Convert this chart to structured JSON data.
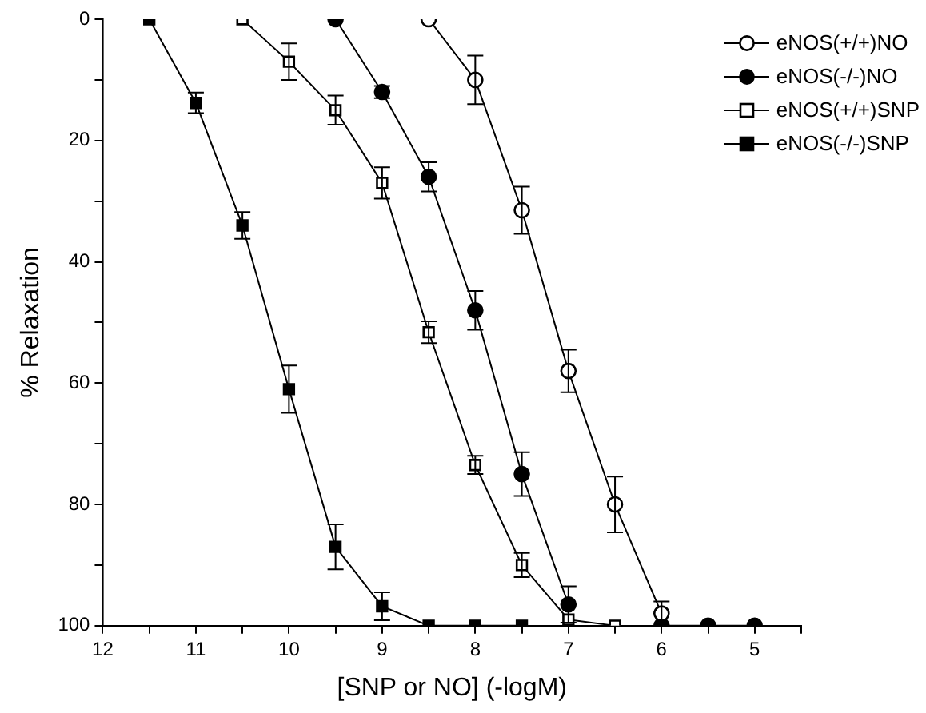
{
  "chart_data": {
    "type": "line",
    "xlabel": "[SNP or NO] (-logM)",
    "ylabel": "% Relaxation",
    "xlim": [
      12,
      4.5
    ],
    "ylim": [
      100,
      0
    ],
    "xticks": [
      12,
      {
        "value": 11.5,
        "label": null
      },
      11,
      {
        "value": 10.5,
        "label": null
      },
      10,
      {
        "value": 9.5,
        "label": null
      },
      9,
      {
        "value": 8.5,
        "label": null
      },
      8,
      {
        "value": 7.5,
        "label": null
      },
      7,
      {
        "value": 6.5,
        "label": null
      },
      6,
      {
        "value": 5.5,
        "label": null
      },
      5,
      {
        "value": 4.5,
        "label": null
      }
    ],
    "yticks": [
      0,
      {
        "value": 10,
        "label": null
      },
      20,
      {
        "value": 30,
        "label": null
      },
      40,
      {
        "value": 50,
        "label": null
      },
      60,
      {
        "value": 70,
        "label": null
      },
      80,
      {
        "value": 90,
        "label": null
      },
      100
    ],
    "grid": false,
    "legend": "top right",
    "line_style": "solid",
    "series": [
      {
        "name": "eNOS(+/+)NO",
        "color": "#000000",
        "marker": "circle",
        "x": [
          8.5,
          8,
          7.5,
          7,
          6.5,
          6
        ],
        "values": [
          0,
          10,
          31.5,
          58,
          80,
          98
        ],
        "errors": [
          null,
          4,
          3.9,
          3.5,
          4.6,
          2
        ]
      },
      {
        "name": "eNOS(-/-)NO",
        "color": "#000000",
        "marker": "circle",
        "x": [
          9.5,
          9,
          8.5,
          8,
          7.5,
          7,
          6.5,
          6,
          5.5,
          5
        ],
        "values": [
          0,
          12,
          26,
          48,
          75,
          96.5,
          null,
          100,
          100,
          100
        ],
        "errors": [
          null,
          1,
          2.4,
          3.2,
          3.6,
          3,
          null,
          null,
          null,
          null
        ]
      },
      {
        "name": "eNOS(+/+)SNP",
        "color": "#000000",
        "marker": "square",
        "x": [
          10.5,
          10,
          9.5,
          9,
          8.5,
          8,
          7.5,
          7,
          6.5
        ],
        "values": [
          0,
          7,
          15,
          27,
          51.6,
          73.5,
          90,
          99,
          100
        ],
        "errors": [
          null,
          3,
          2.4,
          2.6,
          1.8,
          1.5,
          2,
          null,
          null
        ]
      },
      {
        "name": "eNOS(-/-)SNP",
        "color": "#000000",
        "marker": "square",
        "x": [
          11.5,
          11,
          10.5,
          10,
          9.5,
          9,
          8.5,
          8,
          7.5
        ],
        "values": [
          0,
          13.8,
          34,
          61,
          87,
          96.8,
          100,
          100,
          100
        ],
        "errors": [
          null,
          1.7,
          2.2,
          3.9,
          3.7,
          2.3,
          null,
          null,
          null
        ]
      }
    ]
  }
}
